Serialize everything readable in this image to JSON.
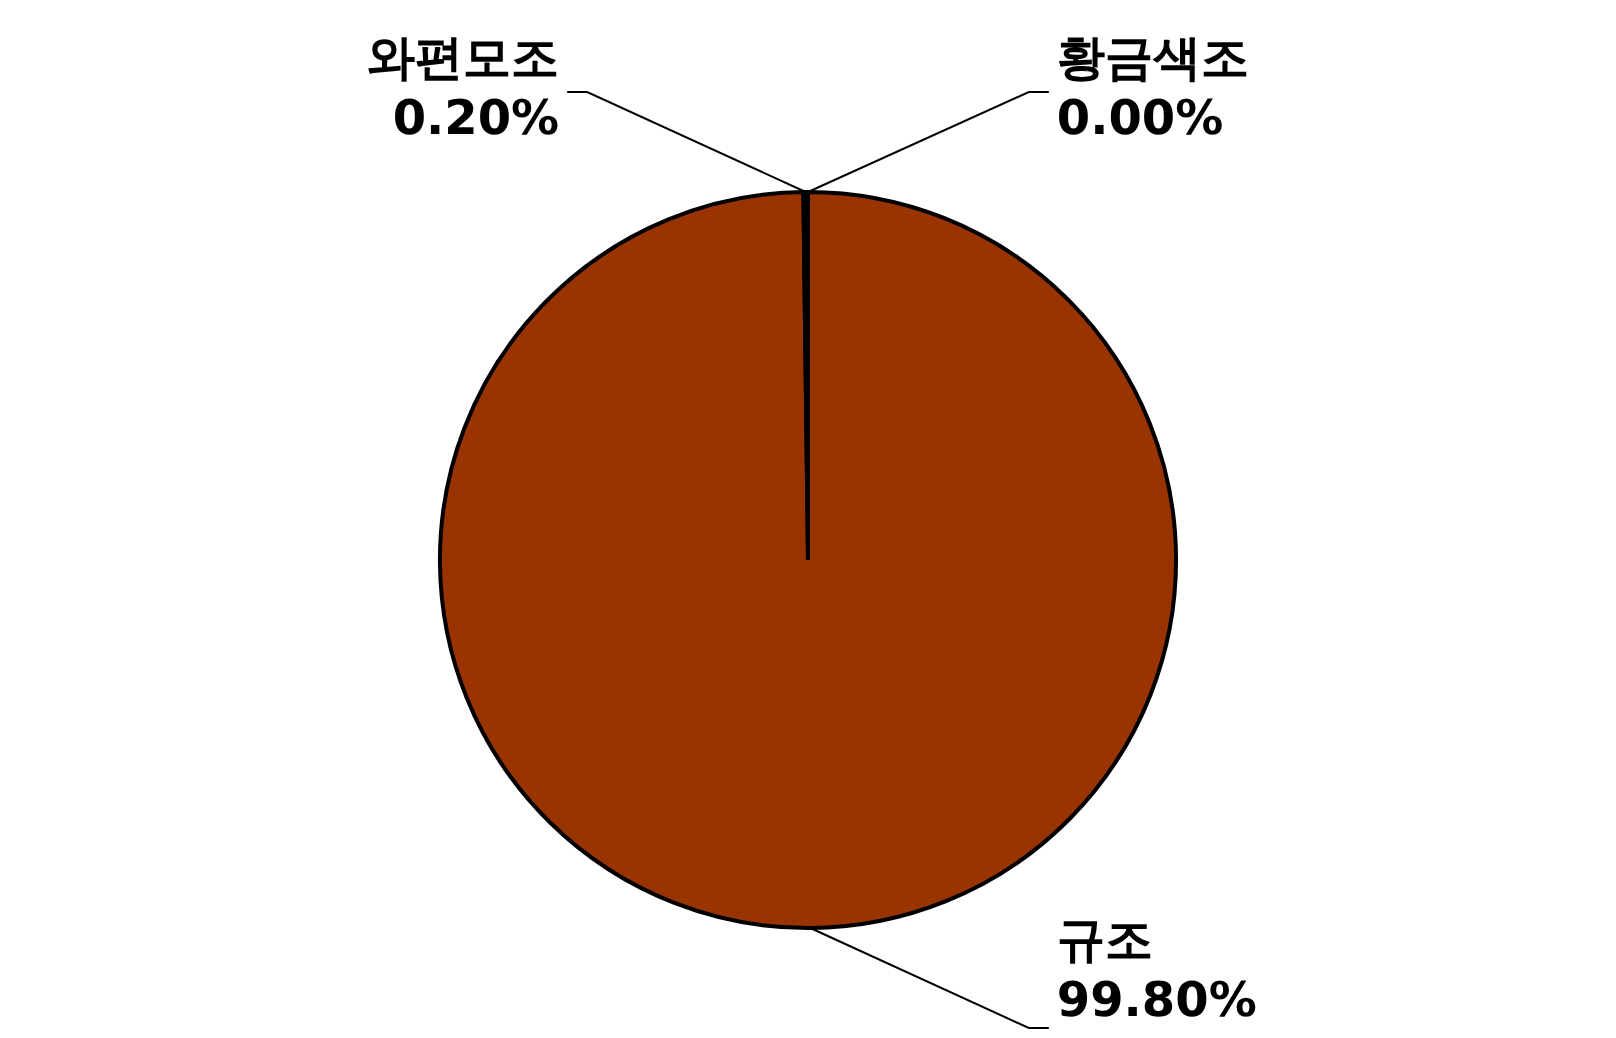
{
  "chart_data": {
    "type": "pie",
    "categories": [
      "황금색조",
      "규조",
      "와편모조"
    ],
    "values": [
      0.0,
      99.8,
      0.2
    ],
    "colors": [
      "#ffcc00",
      "#993300",
      "#000000"
    ],
    "value_labels": [
      "0.00%",
      "99.80%",
      "0.20%"
    ],
    "legend": false
  }
}
